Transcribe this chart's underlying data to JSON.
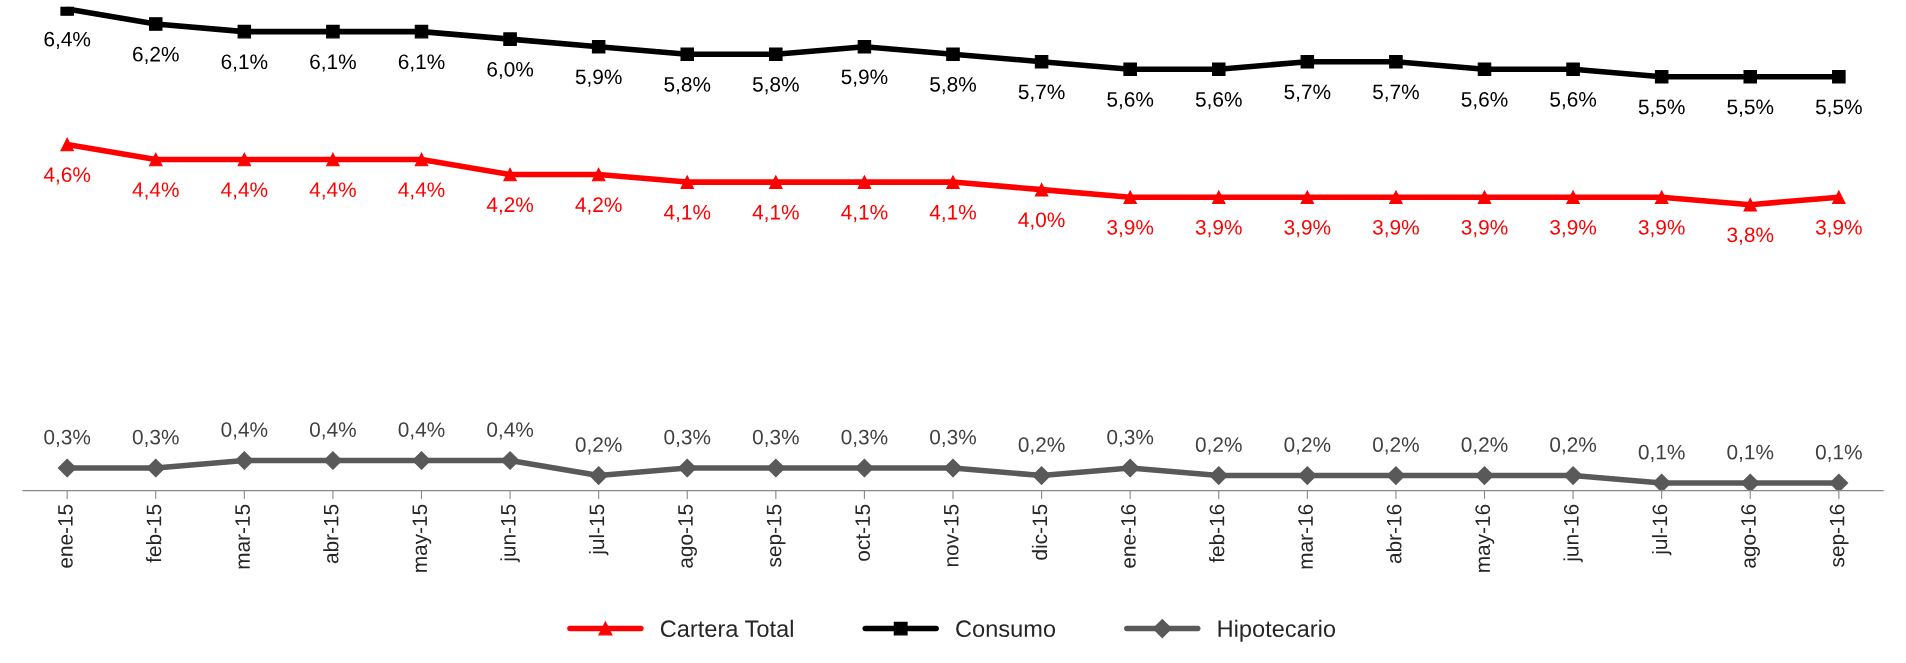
{
  "chart_data": {
    "type": "line",
    "categories": [
      "ene-15",
      "feb-15",
      "mar-15",
      "abr-15",
      "may-15",
      "jun-15",
      "jul-15",
      "ago-15",
      "sep-15",
      "oct-15",
      "nov-15",
      "dic-15",
      "ene-16",
      "feb-16",
      "mar-16",
      "abr-16",
      "may-16",
      "jun-16",
      "jul-16",
      "ago-16",
      "sep-16"
    ],
    "series": [
      {
        "name": "Cartera Total",
        "color": "#ff0000",
        "marker": "triangle",
        "values": [
          4.6,
          4.4,
          4.4,
          4.4,
          4.4,
          4.2,
          4.2,
          4.1,
          4.1,
          4.1,
          4.1,
          4.0,
          3.9,
          3.9,
          3.9,
          3.9,
          3.9,
          3.9,
          3.9,
          3.8,
          3.9
        ],
        "value_labels": [
          "4,6%",
          "4,4%",
          "4,4%",
          "4,4%",
          "4,4%",
          "4,2%",
          "4,2%",
          "4,1%",
          "4,1%",
          "4,1%",
          "4,1%",
          "4,0%",
          "3,9%",
          "3,9%",
          "3,9%",
          "3,9%",
          "3,9%",
          "3,9%",
          "3,9%",
          "3,8%",
          "3,9%"
        ]
      },
      {
        "name": "Consumo",
        "color": "#000000",
        "marker": "square",
        "values": [
          6.4,
          6.2,
          6.1,
          6.1,
          6.1,
          6.0,
          5.9,
          5.8,
          5.8,
          5.9,
          5.8,
          5.7,
          5.6,
          5.6,
          5.7,
          5.7,
          5.6,
          5.6,
          5.5,
          5.5,
          5.5
        ],
        "value_labels": [
          "6,4%",
          "6,2%",
          "6,1%",
          "6,1%",
          "6,1%",
          "6,0%",
          "5,9%",
          "5,8%",
          "5,8%",
          "5,9%",
          "5,8%",
          "5,7%",
          "5,6%",
          "5,6%",
          "5,7%",
          "5,7%",
          "5,6%",
          "5,6%",
          "5,5%",
          "5,5%",
          "5,5%"
        ]
      },
      {
        "name": "Hipotecario",
        "color": "#595959",
        "marker": "diamond",
        "values": [
          0.3,
          0.3,
          0.4,
          0.4,
          0.4,
          0.4,
          0.2,
          0.3,
          0.3,
          0.3,
          0.3,
          0.2,
          0.3,
          0.2,
          0.2,
          0.2,
          0.2,
          0.2,
          0.1,
          0.1,
          0.1
        ],
        "value_labels": [
          "0,3%",
          "0,3%",
          "0,4%",
          "0,4%",
          "0,4%",
          "0,4%",
          "0,2%",
          "0,3%",
          "0,3%",
          "0,3%",
          "0,3%",
          "0,2%",
          "0,3%",
          "0,2%",
          "0,2%",
          "0,2%",
          "0,2%",
          "0,2%",
          "0,1%",
          "0,1%",
          "0,1%"
        ]
      }
    ],
    "legend": "bottom",
    "grid": false,
    "tick_labels": "x"
  }
}
